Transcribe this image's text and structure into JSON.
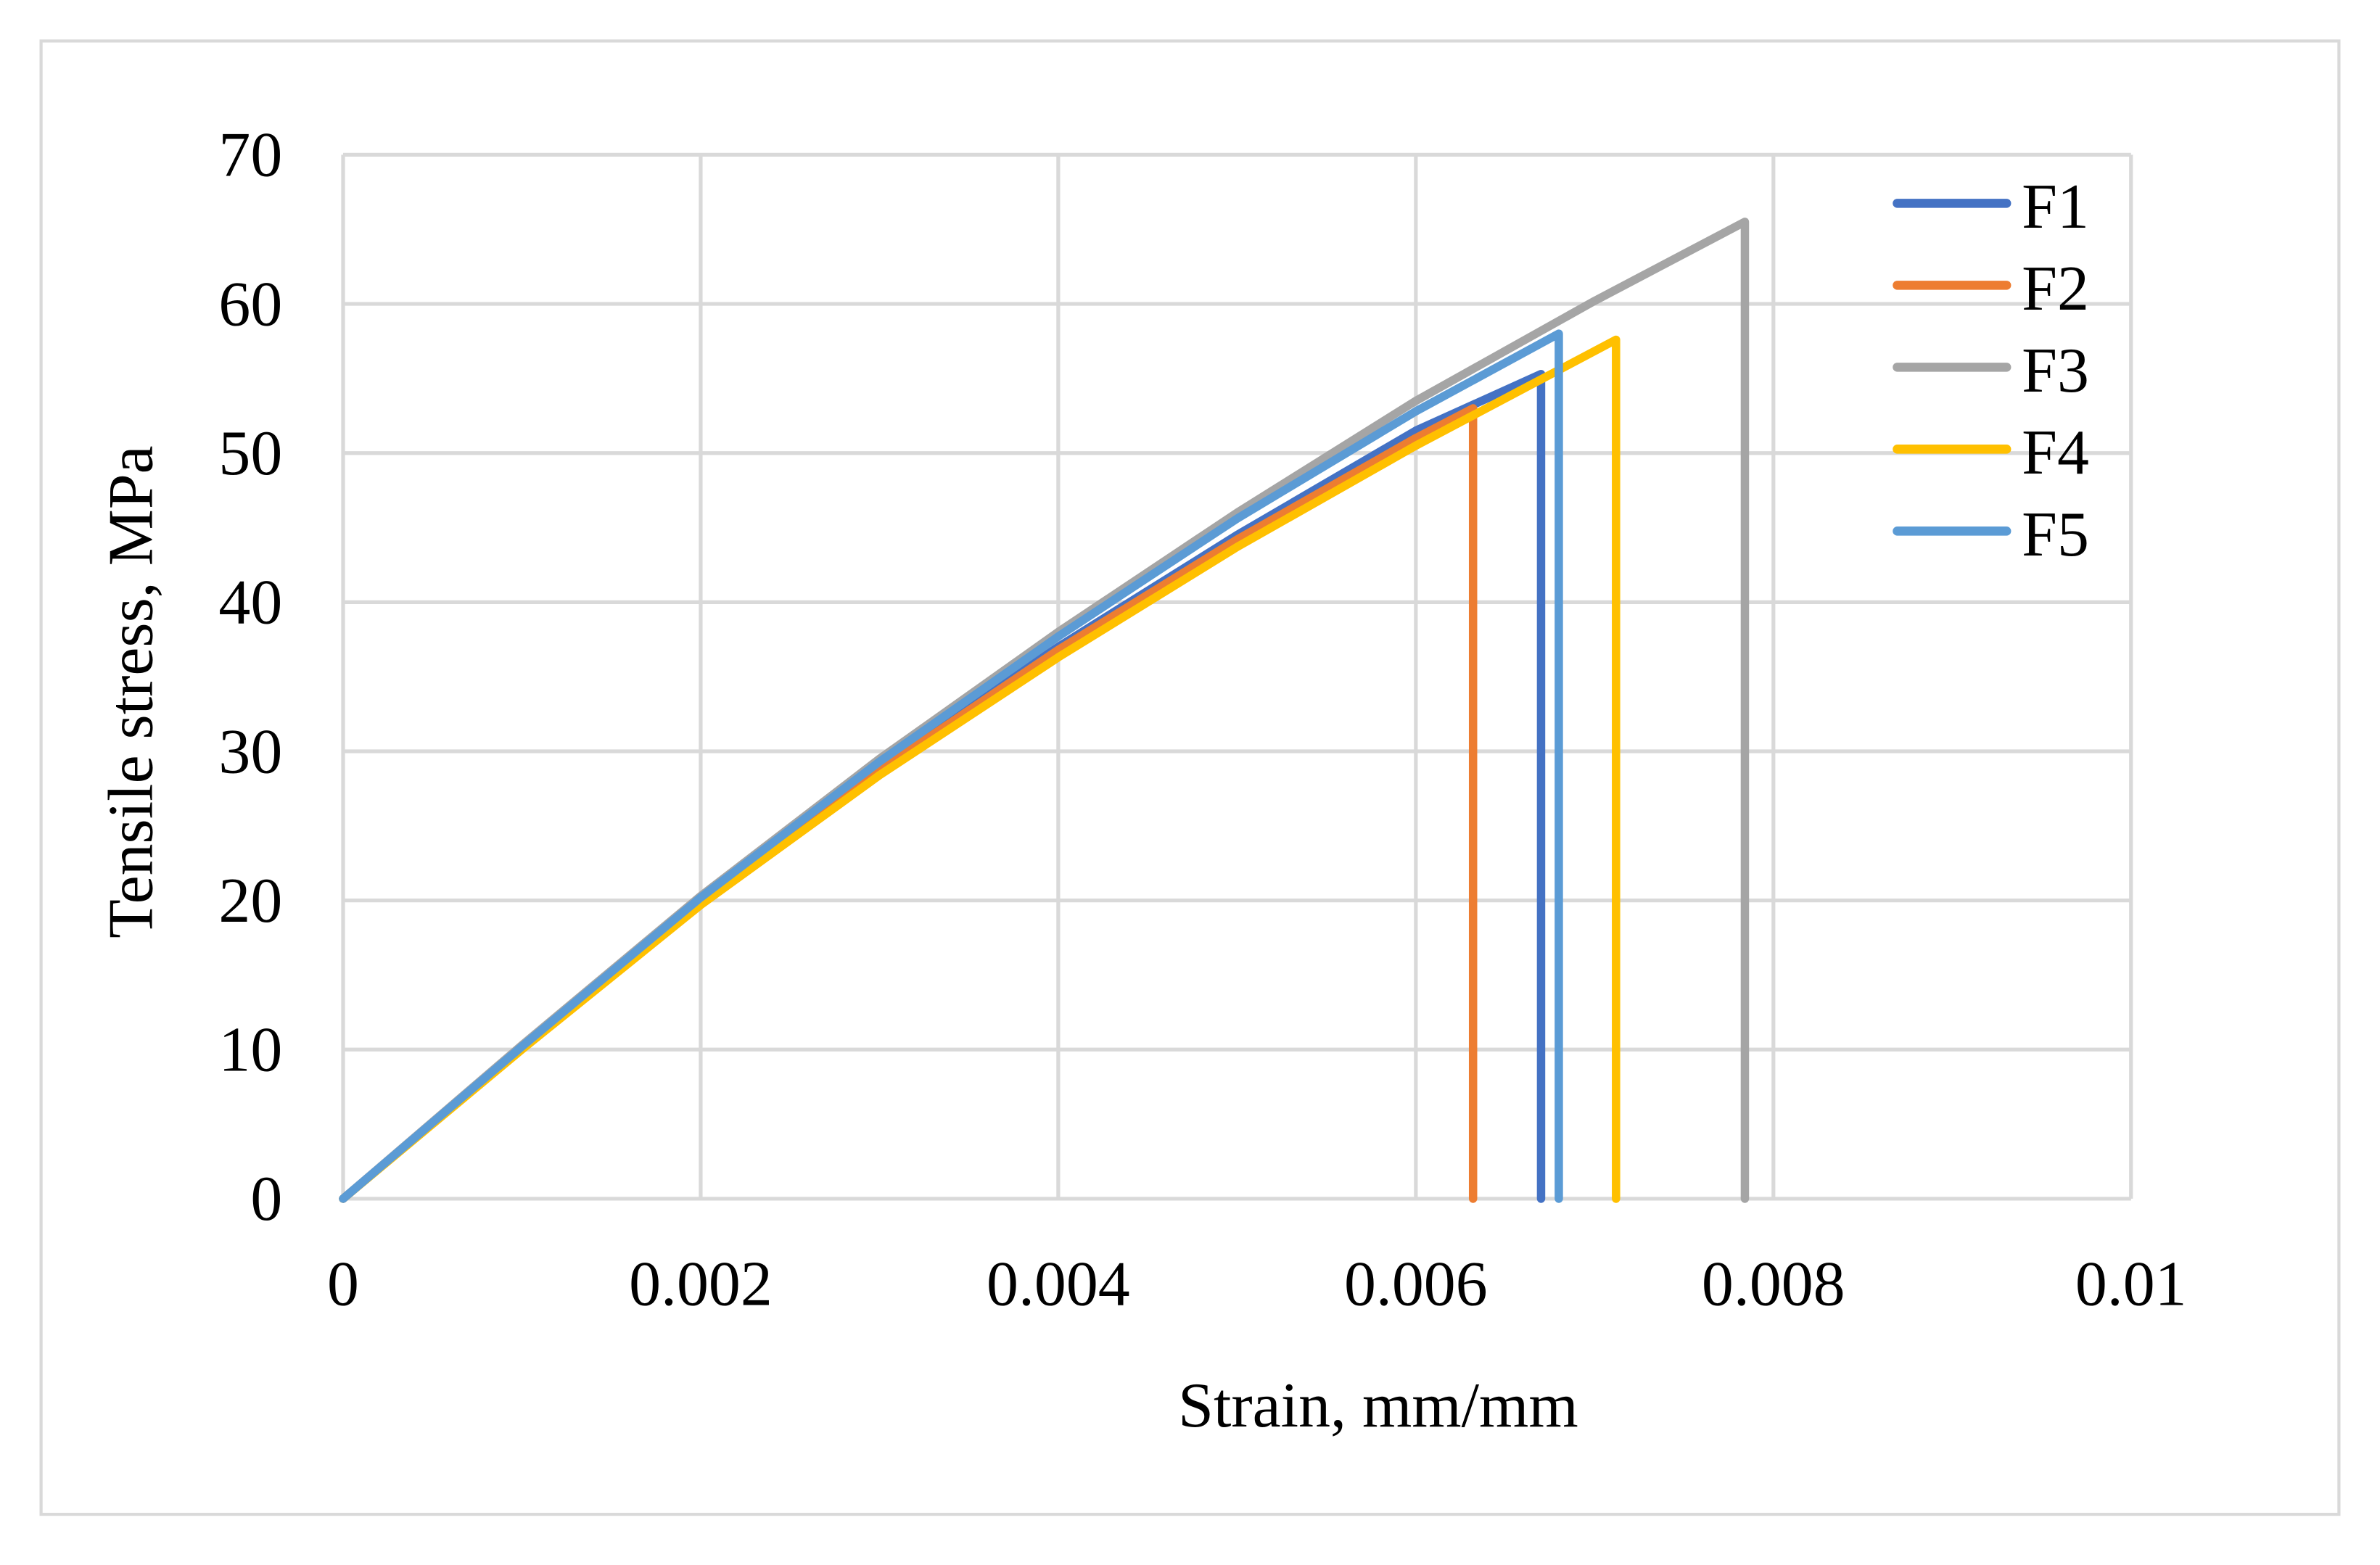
{
  "chart_data": {
    "type": "line",
    "title": "",
    "xlabel": "Strain, mm/mm",
    "ylabel": "Tensile stress, MPa",
    "xlim": [
      0,
      0.01
    ],
    "ylim": [
      0,
      70
    ],
    "xticks": [
      0,
      0.002,
      0.004,
      0.006,
      0.008,
      0.01
    ],
    "xtick_labels": [
      "0",
      "0.002",
      "0.004",
      "0.006",
      "0.008",
      "0.01"
    ],
    "yticks": [
      0,
      10,
      20,
      30,
      40,
      50,
      60,
      70
    ],
    "ytick_labels": [
      "0",
      "10",
      "20",
      "30",
      "40",
      "50",
      "60",
      "70"
    ],
    "grid": true,
    "legend_position": "top-right",
    "series": [
      {
        "name": "F1",
        "color": "#4472C4",
        "x": [
          0,
          0.001,
          0.002,
          0.003,
          0.004,
          0.005,
          0.006,
          0.0067,
          0.0067
        ],
        "y": [
          0,
          10.2,
          20.0,
          28.9,
          37.0,
          44.5,
          51.5,
          55.3,
          0
        ]
      },
      {
        "name": "F2",
        "color": "#ED7D31",
        "x": [
          0,
          0.001,
          0.002,
          0.003,
          0.004,
          0.005,
          0.006,
          0.00632,
          0.00632
        ],
        "y": [
          0,
          10.1,
          19.9,
          28.7,
          36.8,
          44.2,
          51.0,
          53.0,
          0
        ]
      },
      {
        "name": "F3",
        "color": "#A5A5A5",
        "x": [
          0,
          0.001,
          0.002,
          0.003,
          0.004,
          0.005,
          0.006,
          0.007,
          0.00784,
          0.00784
        ],
        "y": [
          0,
          10.3,
          20.3,
          29.5,
          38.0,
          46.0,
          53.5,
          60.2,
          65.5,
          0
        ]
      },
      {
        "name": "F4",
        "color": "#FFC000",
        "x": [
          0,
          0.001,
          0.002,
          0.003,
          0.004,
          0.005,
          0.006,
          0.00712,
          0.00712
        ],
        "y": [
          0,
          10.0,
          19.7,
          28.4,
          36.3,
          43.7,
          50.5,
          57.6,
          0
        ]
      },
      {
        "name": "F5",
        "color": "#5B9BD5",
        "x": [
          0,
          0.001,
          0.002,
          0.003,
          0.004,
          0.005,
          0.006,
          0.0068,
          0.0068
        ],
        "y": [
          0,
          10.2,
          20.2,
          29.3,
          37.7,
          45.6,
          52.8,
          58.0,
          0
        ]
      }
    ]
  }
}
